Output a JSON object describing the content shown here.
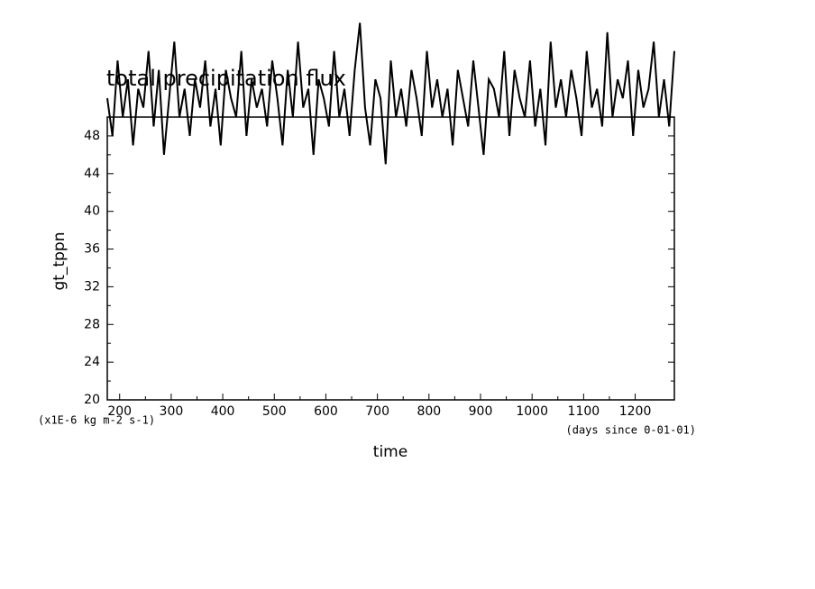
{
  "chart_data": {
    "type": "line",
    "title": "total precipitation flux",
    "ylabel": "gt_tppn",
    "xlabel": "time",
    "y_unit": "(x1E-6 kg m-2 s-1)",
    "x_unit": "(days since 0-01-01)",
    "x": [
      176,
      186,
      196,
      206,
      216,
      226,
      236,
      246,
      256,
      266,
      276,
      286,
      296,
      306,
      316,
      326,
      336,
      346,
      356,
      366,
      376,
      386,
      396,
      406,
      416,
      426,
      436,
      446,
      456,
      466,
      476,
      486,
      496,
      506,
      516,
      526,
      536,
      546,
      556,
      566,
      576,
      586,
      596,
      606,
      616,
      626,
      636,
      646,
      656,
      666,
      676,
      686,
      696,
      706,
      716,
      726,
      736,
      746,
      756,
      766,
      776,
      786,
      796,
      806,
      816,
      826,
      836,
      846,
      856,
      866,
      876,
      886,
      896,
      906,
      916,
      926,
      936,
      946,
      956,
      966,
      976,
      986,
      996,
      1006,
      1016,
      1026,
      1036,
      1046,
      1056,
      1066,
      1076,
      1086,
      1096,
      1106,
      1116,
      1126,
      1136,
      1146,
      1156,
      1166,
      1176,
      1186,
      1196,
      1206,
      1216,
      1226,
      1236,
      1246,
      1256,
      1266,
      1276
    ],
    "series": [
      {
        "name": "gt_tppn",
        "color": "#000000",
        "values": [
          52,
          48,
          56,
          50,
          54,
          47,
          53,
          51,
          57,
          49,
          55,
          46,
          52,
          58,
          50,
          53,
          48,
          54,
          51,
          56,
          49,
          53,
          47,
          55,
          52,
          50,
          57,
          48,
          54,
          51,
          53,
          49,
          56,
          52,
          47,
          55,
          50,
          58,
          51,
          53,
          46,
          54,
          52,
          49,
          57,
          50,
          53,
          48,
          55,
          60,
          51,
          47,
          54,
          52,
          45,
          56,
          50,
          53,
          49,
          55,
          52,
          48,
          57,
          51,
          54,
          50,
          53,
          47,
          55,
          52,
          49,
          56,
          51,
          46,
          54,
          53,
          50,
          57,
          48,
          55,
          52,
          50,
          56,
          49,
          53,
          47,
          58,
          51,
          54,
          50,
          55,
          52,
          48,
          57,
          51,
          53,
          49,
          59,
          50,
          54,
          52,
          56,
          48,
          55,
          51,
          53,
          58,
          50,
          54,
          49,
          57
        ]
      }
    ],
    "xlim": [
      176,
      1276
    ],
    "ylim": [
      20,
      50
    ],
    "xticks": [
      200,
      300,
      400,
      500,
      600,
      700,
      800,
      900,
      1000,
      1100,
      1200
    ],
    "yticks": [
      20,
      24,
      28,
      32,
      36,
      40,
      44,
      48
    ]
  }
}
